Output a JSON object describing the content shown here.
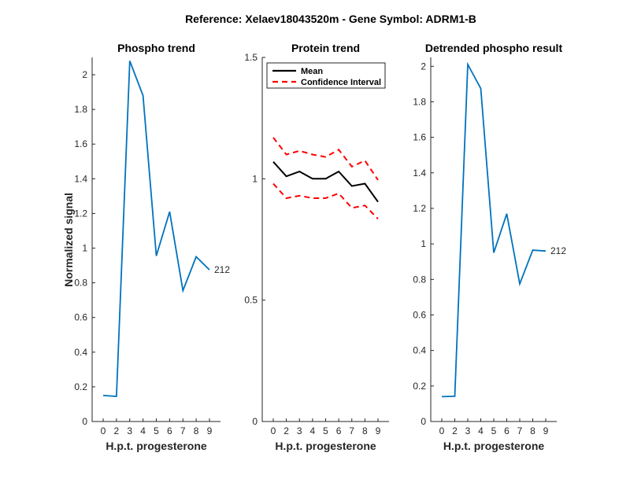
{
  "suptitle": "Reference:  Xelaev18043520m - Gene Symbol:  ADRM1-B",
  "colors": {
    "phospho": "#0072BD",
    "mean": "#000000",
    "ci": "#FF0000"
  },
  "chart_data": [
    {
      "type": "line",
      "title": "Phospho trend",
      "xlabel": "H.p.t. progesterone",
      "ylabel": "Normalized signal",
      "x_ticks": [
        "0",
        "2",
        "3",
        "4",
        "5",
        "6",
        "7",
        "8",
        "9"
      ],
      "ylim": [
        0,
        2.1
      ],
      "y_ticks": [
        "0",
        "0.2",
        "0.4",
        "0.6",
        "0.8",
        "1",
        "1.2",
        "1.4",
        "1.6",
        "1.8",
        "2"
      ],
      "series": [
        {
          "label": "212",
          "values": [
            0.15,
            0.145,
            2.08,
            1.88,
            0.955,
            1.21,
            0.755,
            0.95,
            0.875
          ]
        }
      ]
    },
    {
      "type": "line",
      "title": "Protein trend",
      "xlabel": "H.p.t. progesterone",
      "ylabel": "",
      "x_ticks": [
        "0",
        "2",
        "3",
        "4",
        "5",
        "6",
        "7",
        "8",
        "9"
      ],
      "ylim": [
        0,
        1.5
      ],
      "y_ticks": [
        "0",
        "0.5",
        "1",
        "1.5"
      ],
      "legend": {
        "position": "top-right",
        "entries": [
          "Mean",
          "Confidence Interval"
        ]
      },
      "series": [
        {
          "name": "Mean",
          "style": "solid",
          "values": [
            1.07,
            1.01,
            1.03,
            1.0,
            1.0,
            1.03,
            0.97,
            0.98,
            0.905
          ]
        },
        {
          "name": "Confidence Interval",
          "style": "dashed",
          "values": [
            1.17,
            1.1,
            1.115,
            1.1,
            1.09,
            1.12,
            1.05,
            1.075,
            0.995
          ]
        },
        {
          "name": "Confidence Interval",
          "style": "dashed",
          "values": [
            0.98,
            0.92,
            0.93,
            0.92,
            0.92,
            0.94,
            0.88,
            0.89,
            0.835
          ]
        }
      ]
    },
    {
      "type": "line",
      "title": "Detrended phospho result",
      "xlabel": "H.p.t. progesterone",
      "ylabel": "",
      "x_ticks": [
        "0",
        "2",
        "3",
        "4",
        "5",
        "6",
        "7",
        "8",
        "9"
      ],
      "ylim": [
        0,
        2.05
      ],
      "y_ticks": [
        "0",
        "0.2",
        "0.4",
        "0.6",
        "0.8",
        "1",
        "1.2",
        "1.4",
        "1.6",
        "1.8",
        "2"
      ],
      "series": [
        {
          "label": "212",
          "values": [
            0.14,
            0.142,
            2.01,
            1.875,
            0.95,
            1.17,
            0.775,
            0.965,
            0.96
          ]
        }
      ]
    }
  ]
}
